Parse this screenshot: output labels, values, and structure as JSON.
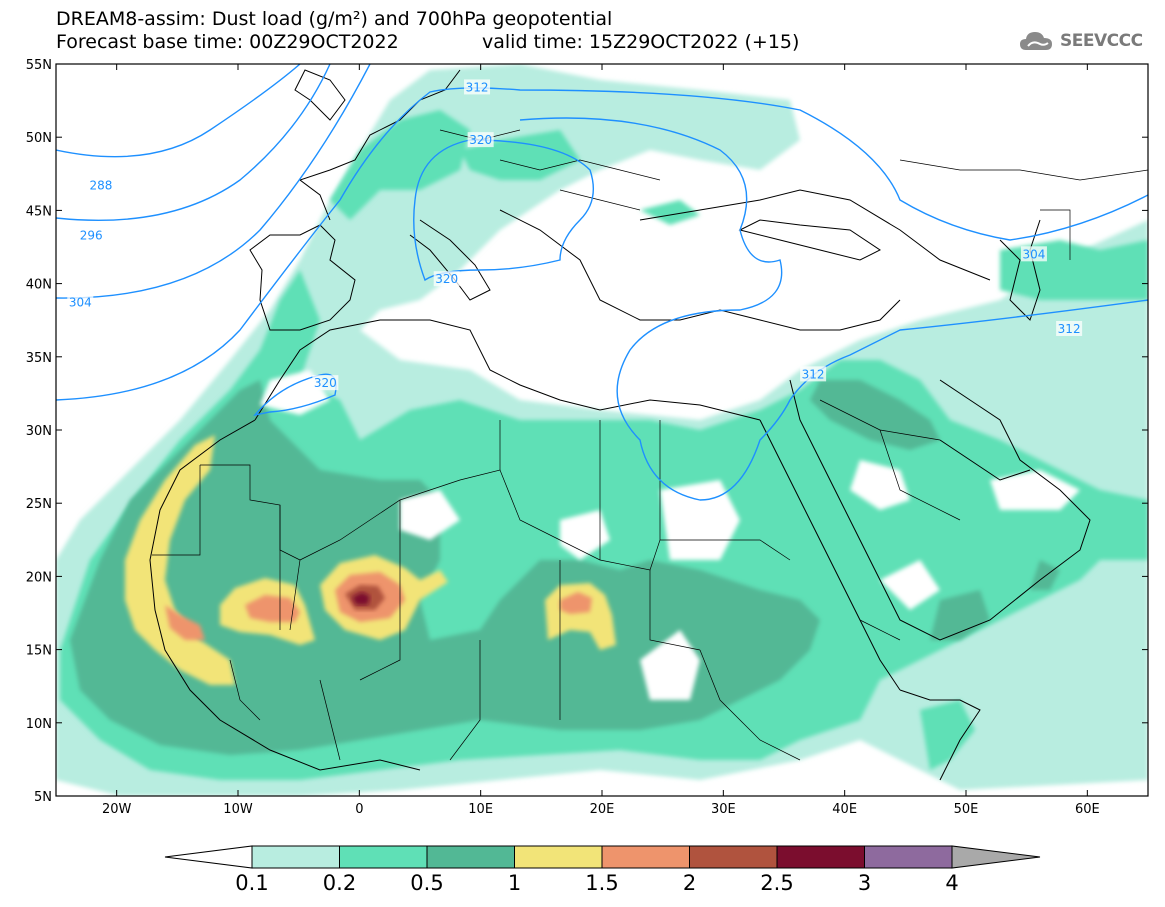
{
  "header": {
    "title_line1": "DREAM8-assim: Dust load (g/m²) and 700hPa geopotential",
    "title_line2": "Forecast base time: 00Z29OCT2022",
    "valid_time": "valid time: 15Z29OCT2022 (+15)",
    "logo_text": "SEEVCCC",
    "logo_icon": "cloud-logo-icon"
  },
  "chart_data": {
    "type": "heatmap",
    "map_extent": {
      "lon": [
        -25,
        65
      ],
      "lat": [
        5,
        55
      ]
    },
    "lat_ticks": [
      "55N",
      "50N",
      "45N",
      "40N",
      "35N",
      "30N",
      "25N",
      "20N",
      "15N",
      "10N",
      "5N"
    ],
    "lat_values": [
      55,
      50,
      45,
      40,
      35,
      30,
      25,
      20,
      15,
      10,
      5
    ],
    "lon_ticks": [
      "20W",
      "10W",
      "0",
      "10E",
      "20E",
      "30E",
      "40E",
      "50E",
      "60E"
    ],
    "lon_values": [
      -20,
      -10,
      0,
      10,
      20,
      30,
      40,
      50,
      60
    ],
    "contour_labels": [
      {
        "text": "288",
        "lon": -21.3,
        "lat": 46.7
      },
      {
        "text": "296",
        "lon": -22.1,
        "lat": 43.3
      },
      {
        "text": "304",
        "lon": -23.0,
        "lat": 38.7
      },
      {
        "text": "320",
        "lon": -2.8,
        "lat": 33.2
      },
      {
        "text": "312",
        "lon": 9.7,
        "lat": 53.4
      },
      {
        "text": "320",
        "lon": 10.0,
        "lat": 49.8
      },
      {
        "text": "320",
        "lon": 7.2,
        "lat": 40.3
      },
      {
        "text": "304",
        "lon": 55.6,
        "lat": 42.0
      },
      {
        "text": "312",
        "lon": 58.5,
        "lat": 36.9
      },
      {
        "text": "312",
        "lon": 37.4,
        "lat": 33.8
      }
    ],
    "colorbar": {
      "levels": [
        "0.1",
        "0.2",
        "0.5",
        "1",
        "1.5",
        "2",
        "2.5",
        "3",
        "4"
      ],
      "colors": [
        "#b8ede0",
        "#5fe0b6",
        "#52b895",
        "#f2e478",
        "#ee946c",
        "#b0533e",
        "#7b0d2e",
        "#8e6a9e"
      ],
      "under_color": "#ffffff",
      "over_color": "#a9a9a9"
    }
  }
}
